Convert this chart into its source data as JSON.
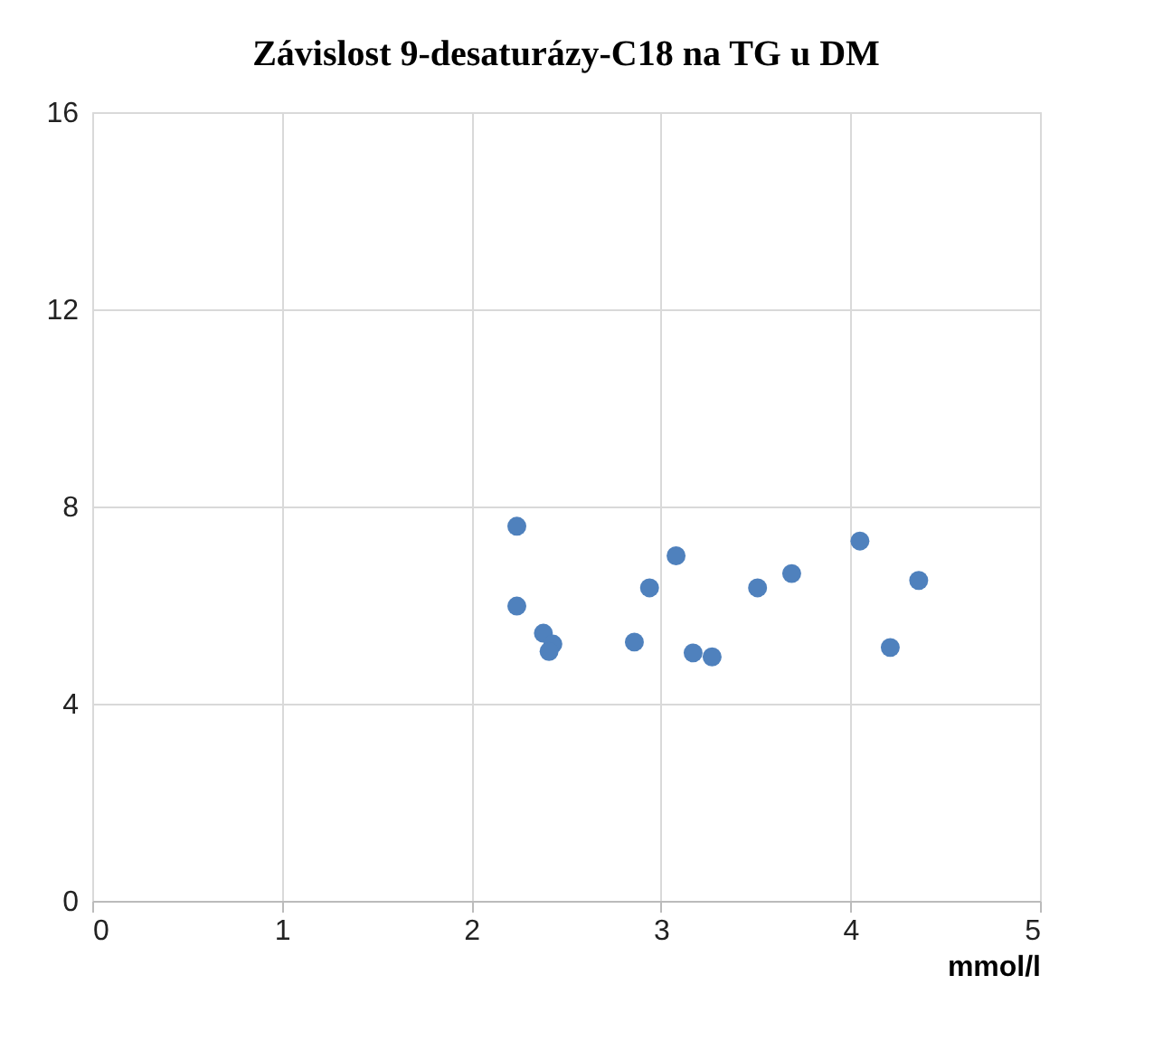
{
  "chart_data": {
    "type": "scatter",
    "title": "Závislost 9-desaturázy-C18 na TG u DM",
    "xlabel": "mmol/l",
    "x": [
      2.24,
      2.24,
      2.38,
      2.43,
      2.41,
      2.86,
      2.94,
      3.08,
      3.17,
      3.27,
      3.51,
      3.69,
      4.05,
      4.21,
      4.36
    ],
    "series": [
      {
        "color": "#4f81bd",
        "values": [
          7.6,
          5.98,
          5.43,
          5.21,
          5.06,
          5.25,
          6.35,
          7.0,
          5.03,
          4.95,
          6.35,
          6.64,
          7.3,
          5.14,
          6.5
        ]
      }
    ],
    "xlim": [
      0,
      5
    ],
    "xticks": [
      0,
      1,
      2,
      3,
      4,
      5
    ],
    "ylim": [
      0,
      16
    ],
    "yticks": [
      0,
      4,
      8,
      12,
      16
    ],
    "grid": true,
    "marker": "circle"
  }
}
